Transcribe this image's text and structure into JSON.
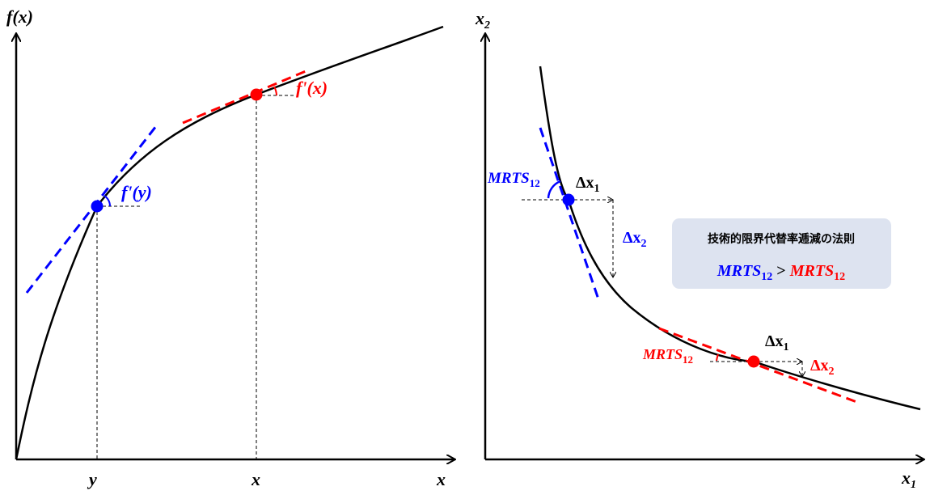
{
  "left_panel": {
    "y_axis_label": "f(x)",
    "x_axis_label": "x",
    "tick_y": "y",
    "tick_x": "x",
    "point_x_label": "f'(x)",
    "point_y_label": "f'(y)"
  },
  "right_panel": {
    "y_axis_label_base": "x",
    "y_axis_label_sub": "2",
    "x_axis_label_base": "x",
    "x_axis_label_sub": "1",
    "blue_mrts_base": "MRTS",
    "blue_mrts_sub": "12",
    "blue_dx1_base": "Δx",
    "blue_dx1_sub": "1",
    "blue_dx2_base": "Δx",
    "blue_dx2_sub": "2",
    "red_mrts_base": "MRTS",
    "red_mrts_sub": "12",
    "red_dx1_base": "Δx",
    "red_dx1_sub": "1",
    "red_dx2_base": "Δx",
    "red_dx2_sub": "2",
    "law_box": {
      "title": "技術的限界代替率逓減の法則",
      "left_base": "MRTS",
      "left_sub": "12",
      "operator": ">",
      "right_base": "MRTS",
      "right_sub": "12"
    }
  },
  "colors": {
    "blue": "#0000ff",
    "red": "#ff0000",
    "curve": "#000000",
    "box_fill": "#dde3f0"
  }
}
